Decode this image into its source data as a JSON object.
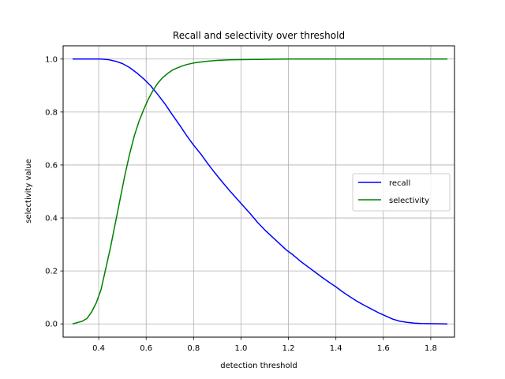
{
  "chart_data": {
    "type": "line",
    "title": "Recall and selectivity over threshold",
    "xlabel": "detection threshold",
    "ylabel": "selectivity value",
    "xlim": [
      0.25,
      1.9
    ],
    "ylim": [
      -0.05,
      1.05
    ],
    "xticks": [
      0.4,
      0.6,
      0.8,
      1.0,
      1.2,
      1.4,
      1.6,
      1.8
    ],
    "xtick_labels": [
      "0.4",
      "0.6",
      "0.8",
      "1.0",
      "1.2",
      "1.4",
      "1.6",
      "1.8"
    ],
    "yticks": [
      0.0,
      0.2,
      0.4,
      0.6,
      0.8,
      1.0
    ],
    "ytick_labels": [
      "0.0",
      "0.2",
      "0.4",
      "0.6",
      "0.8",
      "1.0"
    ],
    "grid": true,
    "legend_position": "center-right",
    "series": [
      {
        "name": "recall",
        "color": "#0000ff",
        "x": [
          0.29,
          0.34,
          0.38,
          0.41,
          0.44,
          0.47,
          0.5,
          0.53,
          0.56,
          0.59,
          0.62,
          0.65,
          0.68,
          0.71,
          0.74,
          0.77,
          0.8,
          0.83,
          0.86,
          0.89,
          0.92,
          0.95,
          0.98,
          1.01,
          1.04,
          1.07,
          1.1,
          1.13,
          1.16,
          1.19,
          1.22,
          1.25,
          1.28,
          1.31,
          1.34,
          1.37,
          1.4,
          1.43,
          1.46,
          1.49,
          1.52,
          1.55,
          1.58,
          1.61,
          1.64,
          1.67,
          1.7,
          1.73,
          1.76,
          1.79,
          1.82,
          1.87
        ],
        "y": [
          1.0,
          1.0,
          1.0,
          1.0,
          0.998,
          0.992,
          0.983,
          0.968,
          0.948,
          0.925,
          0.898,
          0.865,
          0.83,
          0.79,
          0.752,
          0.712,
          0.675,
          0.642,
          0.605,
          0.57,
          0.537,
          0.505,
          0.475,
          0.445,
          0.415,
          0.383,
          0.355,
          0.33,
          0.305,
          0.28,
          0.26,
          0.237,
          0.217,
          0.197,
          0.177,
          0.158,
          0.14,
          0.12,
          0.102,
          0.085,
          0.07,
          0.056,
          0.042,
          0.03,
          0.018,
          0.01,
          0.006,
          0.003,
          0.0015,
          0.001,
          0.0005,
          0.0
        ]
      },
      {
        "name": "selectivity",
        "color": "#008000",
        "x": [
          0.29,
          0.31,
          0.33,
          0.35,
          0.37,
          0.39,
          0.41,
          0.43,
          0.45,
          0.47,
          0.49,
          0.51,
          0.53,
          0.55,
          0.57,
          0.59,
          0.61,
          0.63,
          0.65,
          0.67,
          0.69,
          0.71,
          0.73,
          0.75,
          0.77,
          0.8,
          0.83,
          0.86,
          0.9,
          0.95,
          1.0,
          1.1,
          1.2,
          1.3,
          1.4,
          1.5,
          1.6,
          1.7,
          1.8,
          1.87
        ],
        "y": [
          0.0,
          0.005,
          0.01,
          0.02,
          0.045,
          0.08,
          0.13,
          0.21,
          0.29,
          0.38,
          0.47,
          0.56,
          0.64,
          0.71,
          0.765,
          0.81,
          0.85,
          0.883,
          0.91,
          0.93,
          0.945,
          0.958,
          0.966,
          0.973,
          0.979,
          0.985,
          0.989,
          0.992,
          0.995,
          0.997,
          0.998,
          0.999,
          1.0,
          1.0,
          1.0,
          1.0,
          1.0,
          1.0,
          1.0,
          1.0
        ]
      }
    ]
  }
}
